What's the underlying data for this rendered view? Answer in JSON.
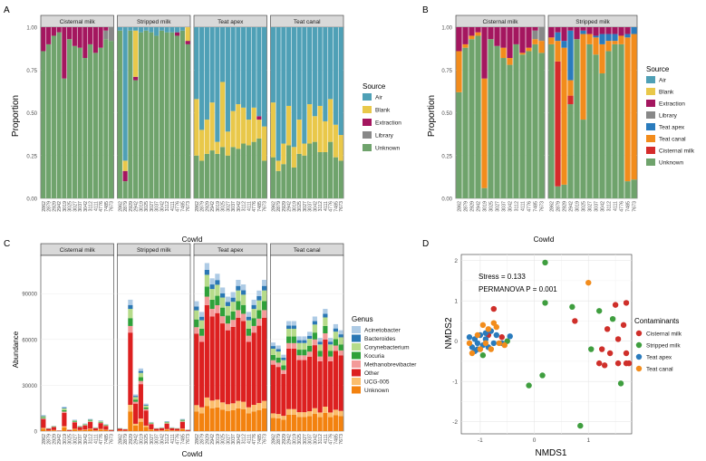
{
  "colors": {
    "Air": "#4fa0b6",
    "Blank": "#e9c84a",
    "Extraction": "#a4165f",
    "Library": "#888888",
    "Teat apex": "#2a7bbd",
    "Teat canal": "#f28c1c",
    "Cisternal milk": "#d52b2b",
    "Unknown": "#6fa36c",
    "Acinetobacter": "#aecbe5",
    "Bacteroides": "#2a77b4",
    "Corynebacterium": "#b6db8a",
    "Kocuria": "#2fa13a",
    "Methanobrevibacter": "#f39a99",
    "Other": "#dd2020",
    "UCG-005": "#fbbd6b",
    "Unknown_genus": "#f3820f",
    "nmds_Cisternal milk": "#cf2f2a",
    "nmds_Stripped milk": "#3f9e3f",
    "nmds_Teat apex": "#2a7bbd",
    "nmds_Teat canal": "#f28c1c"
  },
  "chart_data": [
    {
      "panel": "A",
      "type": "bar",
      "stacked": true,
      "ylabel": "Proportion",
      "xlabel": "CowId",
      "ylim": [
        0,
        1
      ],
      "yticks": [
        "0.00",
        "0.25",
        "0.50",
        "0.75",
        "1.00"
      ],
      "facets": [
        "Cisternal milk",
        "Stripped milk",
        "Teat apex",
        "Teat canal"
      ],
      "categories": [
        "2862",
        "2879",
        "2929",
        "2942",
        "3019",
        "3025",
        "3027",
        "3037",
        "3042",
        "3112",
        "4111",
        "4776",
        "7485",
        "7673"
      ],
      "legend_title": "Source",
      "legend": [
        "Air",
        "Blank",
        "Extraction",
        "Library",
        "Unknown"
      ],
      "series": [
        {
          "facet": "Cisternal milk",
          "stack": [
            {
              "name": "Unknown",
              "values": [
                0.86,
                0.9,
                0.95,
                0.97,
                0.7,
                0.93,
                0.89,
                0.88,
                0.82,
                0.9,
                0.85,
                0.88,
                0.93,
                0.92
              ]
            },
            {
              "name": "Library",
              "values": [
                0,
                0,
                0,
                0,
                0,
                0,
                0,
                0,
                0,
                0,
                0,
                0,
                0.05,
                0.08
              ]
            },
            {
              "name": "Extraction",
              "values": [
                0.14,
                0.1,
                0.05,
                0.03,
                0.3,
                0.07,
                0.11,
                0.12,
                0.18,
                0.1,
                0.15,
                0.12,
                0.02,
                0
              ]
            }
          ]
        },
        {
          "facet": "Stripped milk",
          "stack": [
            {
              "name": "Unknown",
              "values": [
                0.98,
                0.1,
                0.98,
                0.69,
                0.97,
                0.98,
                0.97,
                0.95,
                0.98,
                0.97,
                0.97,
                0.95,
                0.98,
                0.9
              ]
            },
            {
              "name": "Extraction",
              "values": [
                0,
                0.06,
                0,
                0.02,
                0,
                0,
                0,
                0,
                0,
                0,
                0,
                0.02,
                0,
                0.02
              ]
            },
            {
              "name": "Blank",
              "values": [
                0,
                0.06,
                0,
                0.27,
                0,
                0,
                0,
                0,
                0,
                0,
                0,
                0,
                0,
                0.08
              ]
            },
            {
              "name": "Air",
              "values": [
                0.02,
                0.78,
                0.02,
                0.02,
                0.03,
                0.02,
                0.03,
                0.05,
                0.02,
                0.03,
                0.03,
                0.03,
                0.02,
                0
              ]
            }
          ]
        },
        {
          "facet": "Teat apex",
          "stack": [
            {
              "name": "Unknown",
              "values": [
                0.25,
                0.22,
                0.26,
                0.28,
                0.26,
                0.3,
                0.25,
                0.3,
                0.29,
                0.32,
                0.31,
                0.33,
                0.35,
                0.22
              ]
            },
            {
              "name": "Blank",
              "values": [
                0.33,
                0.18,
                0.2,
                0.28,
                0.07,
                0.38,
                0.14,
                0.21,
                0.26,
                0.21,
                0.15,
                0.2,
                0.11,
                0.2
              ]
            },
            {
              "name": "Extraction",
              "values": [
                0,
                0,
                0,
                0,
                0,
                0,
                0,
                0,
                0,
                0,
                0,
                0,
                0.02,
                0
              ]
            },
            {
              "name": "Air",
              "values": [
                0.42,
                0.6,
                0.54,
                0.44,
                0.67,
                0.32,
                0.61,
                0.49,
                0.45,
                0.47,
                0.54,
                0.47,
                0.52,
                0.58
              ]
            }
          ]
        },
        {
          "facet": "Teat canal",
          "stack": [
            {
              "name": "Unknown",
              "values": [
                0.24,
                0.16,
                0.2,
                0.31,
                0.18,
                0.26,
                0.25,
                0.32,
                0.33,
                0.27,
                0.27,
                0.33,
                0.24,
                0.22
              ]
            },
            {
              "name": "Blank",
              "values": [
                0.32,
                0.06,
                0.12,
                0.23,
                0.12,
                0.2,
                0.07,
                0.23,
                0.15,
                0.27,
                0.18,
                0.25,
                0.19,
                0.15
              ]
            },
            {
              "name": "Air",
              "values": [
                0.44,
                0.78,
                0.68,
                0.46,
                0.7,
                0.54,
                0.68,
                0.45,
                0.52,
                0.46,
                0.55,
                0.42,
                0.57,
                0.63
              ]
            }
          ]
        }
      ]
    },
    {
      "panel": "B",
      "type": "bar",
      "stacked": true,
      "ylabel": "Proportion",
      "xlabel": "CowId",
      "ylim": [
        0,
        1
      ],
      "yticks": [
        "0.00",
        "0.25",
        "0.50",
        "0.75",
        "1.00"
      ],
      "facets": [
        "Cisternal milk",
        "Stripped milk"
      ],
      "categories": [
        "2862",
        "2879",
        "2929",
        "2942",
        "3019",
        "3025",
        "3027",
        "3037",
        "3042",
        "3112",
        "4111",
        "4776",
        "7485",
        "7673"
      ],
      "legend_title": "Source",
      "legend": [
        "Air",
        "Blank",
        "Extraction",
        "Library",
        "Teat apex",
        "Teat canal",
        "Cisternal milk",
        "Unknown"
      ],
      "series": [
        {
          "facet": "Cisternal milk",
          "stack": [
            {
              "name": "Unknown",
              "values": [
                0.62,
                0.88,
                0.93,
                0.95,
                0.06,
                0.93,
                0.89,
                0.82,
                0.78,
                0.9,
                0.84,
                0.86,
                0.9,
                0.85
              ]
            },
            {
              "name": "Teat canal",
              "values": [
                0.24,
                0.02,
                0.02,
                0.02,
                0.64,
                0,
                0,
                0.06,
                0.04,
                0,
                0.01,
                0.02,
                0.03,
                0.07
              ]
            },
            {
              "name": "Library",
              "values": [
                0,
                0,
                0,
                0,
                0,
                0,
                0,
                0,
                0,
                0,
                0,
                0,
                0.05,
                0.08
              ]
            },
            {
              "name": "Extraction",
              "values": [
                0.14,
                0.1,
                0.05,
                0.03,
                0.3,
                0.07,
                0.11,
                0.12,
                0.18,
                0.1,
                0.15,
                0.12,
                0.02,
                0
              ]
            }
          ]
        },
        {
          "facet": "Stripped milk",
          "stack": [
            {
              "name": "Unknown",
              "values": [
                0.9,
                0.07,
                0.08,
                0.55,
                0.93,
                0.46,
                0.9,
                0.84,
                0.73,
                0.86,
                0.9,
                0.9,
                0.1,
                0.11
              ]
            },
            {
              "name": "Cisternal milk",
              "values": [
                0,
                0.73,
                0.0,
                0.05,
                0,
                0,
                0,
                0,
                0,
                0,
                0,
                0,
                0,
                0
              ]
            },
            {
              "name": "Teat canal",
              "values": [
                0.04,
                0.12,
                0.8,
                0.09,
                0,
                0.5,
                0.06,
                0.1,
                0.17,
                0.06,
                0.02,
                0.05,
                0.84,
                0.85
              ]
            },
            {
              "name": "Teat apex",
              "values": [
                0,
                0.05,
                0.04,
                0.29,
                0,
                0.02,
                0,
                0.01,
                0.06,
                0.04,
                0.04,
                0,
                0.02,
                0.04
              ]
            },
            {
              "name": "Extraction",
              "values": [
                0.06,
                0.03,
                0.08,
                0.02,
                0.07,
                0.02,
                0.04,
                0.05,
                0.04,
                0.04,
                0.04,
                0.05,
                0.04,
                0
              ]
            }
          ]
        }
      ]
    },
    {
      "panel": "C",
      "type": "bar",
      "stacked": true,
      "ylabel": "Abundance",
      "xlabel": "CowId",
      "ylim": [
        0,
        115000
      ],
      "yticks": [
        "0",
        "30000",
        "60000",
        "90000"
      ],
      "facets": [
        "Cisternal milk",
        "Stripped milk",
        "Teat apex",
        "Teat canal"
      ],
      "categories": [
        "2862",
        "2879",
        "2929",
        "2942",
        "3019",
        "3025",
        "3027",
        "3037",
        "3042",
        "3112",
        "4111",
        "4776",
        "7485",
        "7673"
      ],
      "legend_title": "Genus",
      "legend": [
        "Acinetobacter",
        "Bacteroides",
        "Corynebacterium",
        "Kocuria",
        "Methanobrevibacter",
        "Other",
        "UCG-005",
        "Unknown"
      ],
      "series": [
        {
          "facet": "Cisternal milk",
          "totals": [
            10500,
            2000,
            3500,
            500,
            16000,
            1000,
            7500,
            3500,
            5000,
            8000,
            2500,
            7000,
            4500,
            1000
          ]
        },
        {
          "facet": "Stripped milk",
          "totals": [
            2000,
            1500,
            86000,
            24000,
            41000,
            18000,
            6000,
            2000,
            2500,
            6500,
            2500,
            2000,
            8000,
            1000
          ]
        },
        {
          "facet": "Teat apex",
          "totals": [
            85000,
            78000,
            110000,
            100000,
            103000,
            94000,
            88000,
            91000,
            99000,
            96000,
            78000,
            86000,
            92000,
            99000
          ]
        },
        {
          "facet": "Teat canal",
          "totals": [
            58000,
            56000,
            50000,
            72000,
            72000,
            62000,
            62000,
            65000,
            75000,
            61000,
            80000,
            61000,
            70000,
            66000
          ]
        }
      ]
    },
    {
      "panel": "D",
      "type": "scatter",
      "xlabel": "NMDS1",
      "ylabel": "NMDS2",
      "xlim": [
        -1.35,
        1.8
      ],
      "ylim": [
        -2.3,
        2.15
      ],
      "xticks": [
        "-1",
        "0",
        "1"
      ],
      "yticks": [
        "-2",
        "-1",
        "0",
        "1",
        "2"
      ],
      "annotations": [
        "Stress = 0.133",
        "PERMANOVA P = 0.001"
      ],
      "legend_title": "Contaminants",
      "legend": [
        "Cisternal milk",
        "Stripped milk",
        "Teat apex",
        "Teat canal"
      ],
      "series": [
        {
          "name": "Cisternal milk",
          "points": [
            [
              -0.85,
              0.15
            ],
            [
              -0.75,
              0.8
            ],
            [
              -0.6,
              0.1
            ],
            [
              0.75,
              0.5
            ],
            [
              1.5,
              0.9
            ],
            [
              1.7,
              0.95
            ],
            [
              1.65,
              0.4
            ],
            [
              1.35,
              0.3
            ],
            [
              1.25,
              -0.2
            ],
            [
              1.4,
              -0.3
            ],
            [
              1.55,
              0.05
            ],
            [
              1.7,
              -0.3
            ],
            [
              1.55,
              -0.55
            ],
            [
              1.7,
              -0.55
            ],
            [
              1.75,
              -0.55
            ],
            [
              1.2,
              -0.55
            ],
            [
              1.3,
              -0.6
            ]
          ]
        },
        {
          "name": "Stripped milk",
          "points": [
            [
              0.2,
              1.95
            ],
            [
              0.2,
              0.95
            ],
            [
              0.15,
              -0.85
            ],
            [
              -0.1,
              -1.1
            ],
            [
              0.85,
              -2.1
            ],
            [
              0.7,
              0.85
            ],
            [
              1.05,
              -0.2
            ],
            [
              1.6,
              -1.05
            ],
            [
              1.45,
              0.55
            ],
            [
              1.2,
              0.75
            ],
            [
              -0.95,
              -0.35
            ],
            [
              -0.5,
              0.0
            ]
          ]
        },
        {
          "name": "Teat apex",
          "points": [
            [
              -1.2,
              0.1
            ],
            [
              -1.15,
              -0.15
            ],
            [
              -1.1,
              0.05
            ],
            [
              -1.05,
              -0.05
            ],
            [
              -1.05,
              -0.2
            ],
            [
              -1.0,
              0.15
            ],
            [
              -0.95,
              -0.1
            ],
            [
              -0.9,
              0.2
            ],
            [
              -0.9,
              0.05
            ],
            [
              -0.85,
              -0.15
            ],
            [
              -0.8,
              0.25
            ],
            [
              -0.75,
              -0.05
            ],
            [
              -0.7,
              0.15
            ],
            [
              -0.6,
              -0.05
            ],
            [
              -0.45,
              0.12
            ],
            [
              -1.1,
              -0.25
            ]
          ]
        },
        {
          "name": "Teat canal",
          "points": [
            [
              -1.15,
              -0.3
            ],
            [
              -1.05,
              0.15
            ],
            [
              -1.0,
              -0.2
            ],
            [
              -0.95,
              0.4
            ],
            [
              -0.9,
              -0.05
            ],
            [
              -0.85,
              0.3
            ],
            [
              -0.8,
              -0.2
            ],
            [
              -0.7,
              0.35
            ],
            [
              -0.65,
              -0.05
            ],
            [
              -0.55,
              -0.1
            ],
            [
              1.0,
              1.45
            ],
            [
              -1.2,
              -0.05
            ],
            [
              -0.75,
              0.45
            ]
          ]
        }
      ]
    }
  ]
}
